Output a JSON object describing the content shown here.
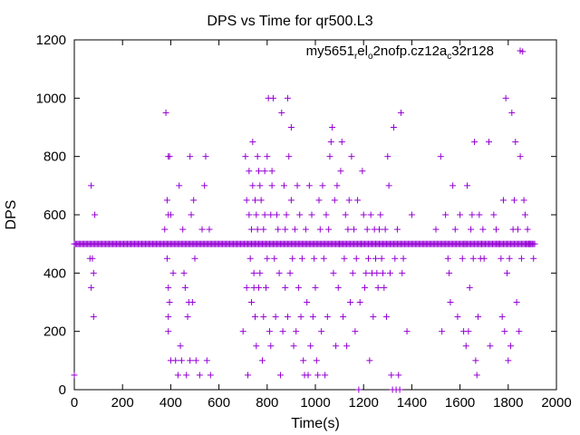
{
  "chart_data": {
    "type": "scatter",
    "title": "DPS vs Time for qr500.L3",
    "xlabel": "Time(s)",
    "ylabel": "DPS",
    "xlim": [
      0,
      2000
    ],
    "ylim": [
      0,
      1200
    ],
    "xticks": [
      "0",
      "200",
      "400",
      "600",
      "800",
      "1000",
      "1200",
      "1400",
      "1600",
      "1800",
      "2000"
    ],
    "yticks": [
      "0",
      "200",
      "400",
      "600",
      "800",
      "1000",
      "1200"
    ],
    "grid": false,
    "legend": {
      "position": "top-right",
      "parts": [
        {
          "t": "my5651",
          "sub": false
        },
        {
          "t": "r",
          "sub": true
        },
        {
          "t": "el",
          "sub": false
        },
        {
          "t": "o",
          "sub": true
        },
        {
          "t": "2nofp.cz12a",
          "sub": false
        },
        {
          "t": "c",
          "sub": true
        },
        {
          "t": "32r128",
          "sub": false
        }
      ]
    },
    "series": [
      {
        "name": "my5651_rel_o2nofp.cz12a_c32r128",
        "color": "#9400d3",
        "marker": "+",
        "baseline": {
          "y": 500,
          "x_start": 0,
          "x_end": 1910,
          "step": 5
        },
        "points": [
          [
            0,
            50
          ],
          [
            65,
            450
          ],
          [
            70,
            700
          ],
          [
            70,
            350
          ],
          [
            75,
            450
          ],
          [
            80,
            250
          ],
          [
            80,
            400
          ],
          [
            85,
            600
          ],
          [
            375,
            550
          ],
          [
            380,
            950
          ],
          [
            385,
            650
          ],
          [
            385,
            450
          ],
          [
            390,
            800
          ],
          [
            390,
            600
          ],
          [
            390,
            350
          ],
          [
            390,
            250
          ],
          [
            390,
            200
          ],
          [
            395,
            800
          ],
          [
            395,
            300
          ],
          [
            400,
            600
          ],
          [
            400,
            100
          ],
          [
            410,
            400
          ],
          [
            420,
            100
          ],
          [
            430,
            50
          ],
          [
            435,
            700
          ],
          [
            440,
            150
          ],
          [
            445,
            100
          ],
          [
            450,
            550
          ],
          [
            455,
            400
          ],
          [
            460,
            350
          ],
          [
            465,
            50
          ],
          [
            470,
            250
          ],
          [
            475,
            300
          ],
          [
            480,
            800
          ],
          [
            480,
            100
          ],
          [
            485,
            600
          ],
          [
            490,
            300
          ],
          [
            495,
            650
          ],
          [
            500,
            450
          ],
          [
            505,
            100
          ],
          [
            520,
            50
          ],
          [
            530,
            550
          ],
          [
            540,
            700
          ],
          [
            545,
            800
          ],
          [
            550,
            100
          ],
          [
            560,
            550
          ],
          [
            565,
            50
          ],
          [
            700,
            200
          ],
          [
            710,
            800
          ],
          [
            715,
            350
          ],
          [
            715,
            650
          ],
          [
            720,
            50
          ],
          [
            725,
            600
          ],
          [
            725,
            750
          ],
          [
            730,
            450
          ],
          [
            735,
            550
          ],
          [
            735,
            300
          ],
          [
            740,
            850
          ],
          [
            740,
            700
          ],
          [
            745,
            350
          ],
          [
            745,
            400
          ],
          [
            750,
            650
          ],
          [
            750,
            250
          ],
          [
            755,
            600
          ],
          [
            755,
            150
          ],
          [
            760,
            800
          ],
          [
            760,
            550
          ],
          [
            765,
            750
          ],
          [
            765,
            350
          ],
          [
            770,
            400
          ],
          [
            770,
            700
          ],
          [
            775,
            650
          ],
          [
            780,
            100
          ],
          [
            785,
            250
          ],
          [
            785,
            550
          ],
          [
            790,
            600
          ],
          [
            790,
            750
          ],
          [
            795,
            350
          ],
          [
            800,
            800
          ],
          [
            800,
            450
          ],
          [
            805,
            1000
          ],
          [
            810,
            200
          ],
          [
            815,
            600
          ],
          [
            815,
            150
          ],
          [
            820,
            750
          ],
          [
            820,
            700
          ],
          [
            825,
            1000
          ],
          [
            830,
            450
          ],
          [
            835,
            250
          ],
          [
            840,
            600
          ],
          [
            845,
            550
          ],
          [
            850,
            400
          ],
          [
            855,
            50
          ],
          [
            860,
            950
          ],
          [
            865,
            200
          ],
          [
            870,
            700
          ],
          [
            875,
            550
          ],
          [
            875,
            350
          ],
          [
            880,
            600
          ],
          [
            885,
            1000
          ],
          [
            885,
            250
          ],
          [
            890,
            800
          ],
          [
            895,
            400
          ],
          [
            900,
            900
          ],
          [
            900,
            650
          ],
          [
            905,
            450
          ],
          [
            910,
            150
          ],
          [
            915,
            550
          ],
          [
            920,
            200
          ],
          [
            925,
            700
          ],
          [
            930,
            350
          ],
          [
            935,
            600
          ],
          [
            940,
            250
          ],
          [
            945,
            450
          ],
          [
            950,
            100
          ],
          [
            955,
            50
          ],
          [
            960,
            550
          ],
          [
            965,
            300
          ],
          [
            970,
            50
          ],
          [
            975,
            700
          ],
          [
            980,
            150
          ],
          [
            985,
            600
          ],
          [
            990,
            250
          ],
          [
            995,
            450
          ],
          [
            1000,
            350
          ],
          [
            1005,
            100
          ],
          [
            1010,
            50
          ],
          [
            1015,
            650
          ],
          [
            1020,
            550
          ],
          [
            1025,
            200
          ],
          [
            1030,
            700
          ],
          [
            1035,
            450
          ],
          [
            1040,
            50
          ],
          [
            1045,
            600
          ],
          [
            1050,
            250
          ],
          [
            1055,
            550
          ],
          [
            1060,
            800
          ],
          [
            1065,
            850
          ],
          [
            1070,
            900
          ],
          [
            1075,
            400
          ],
          [
            1080,
            650
          ],
          [
            1085,
            150
          ],
          [
            1090,
            700
          ],
          [
            1095,
            350
          ],
          [
            1100,
            500
          ],
          [
            1105,
            750
          ],
          [
            1110,
            850
          ],
          [
            1115,
            250
          ],
          [
            1120,
            450
          ],
          [
            1125,
            600
          ],
          [
            1130,
            150
          ],
          [
            1135,
            550
          ],
          [
            1140,
            650
          ],
          [
            1145,
            300
          ],
          [
            1150,
            800
          ],
          [
            1155,
            400
          ],
          [
            1160,
            550
          ],
          [
            1165,
            200
          ],
          [
            1170,
            450
          ],
          [
            1175,
            650
          ],
          [
            1180,
            0
          ],
          [
            1185,
            300
          ],
          [
            1190,
            500
          ],
          [
            1195,
            750
          ],
          [
            1200,
            600
          ],
          [
            1205,
            350
          ],
          [
            1210,
            400
          ],
          [
            1215,
            550
          ],
          [
            1220,
            450
          ],
          [
            1225,
            100
          ],
          [
            1230,
            600
          ],
          [
            1235,
            400
          ],
          [
            1240,
            250
          ],
          [
            1245,
            550
          ],
          [
            1250,
            450
          ],
          [
            1255,
            400
          ],
          [
            1260,
            350
          ],
          [
            1265,
            550
          ],
          [
            1270,
            600
          ],
          [
            1275,
            450
          ],
          [
            1280,
            400
          ],
          [
            1285,
            350
          ],
          [
            1290,
            550
          ],
          [
            1295,
            250
          ],
          [
            1300,
            800
          ],
          [
            1305,
            700
          ],
          [
            1310,
            400
          ],
          [
            1315,
            50
          ],
          [
            1320,
            0
          ],
          [
            1325,
            900
          ],
          [
            1330,
            450
          ],
          [
            1335,
            0
          ],
          [
            1340,
            550
          ],
          [
            1345,
            50
          ],
          [
            1350,
            0
          ],
          [
            1355,
            950
          ],
          [
            1360,
            400
          ],
          [
            1365,
            450
          ],
          [
            1380,
            200
          ],
          [
            1400,
            600
          ],
          [
            1500,
            550
          ],
          [
            1520,
            800
          ],
          [
            1525,
            200
          ],
          [
            1540,
            600
          ],
          [
            1550,
            450
          ],
          [
            1555,
            400
          ],
          [
            1560,
            300
          ],
          [
            1570,
            700
          ],
          [
            1580,
            550
          ],
          [
            1590,
            250
          ],
          [
            1600,
            600
          ],
          [
            1610,
            450
          ],
          [
            1615,
            200
          ],
          [
            1620,
            500
          ],
          [
            1625,
            150
          ],
          [
            1630,
            700
          ],
          [
            1635,
            200
          ],
          [
            1640,
            350
          ],
          [
            1645,
            550
          ],
          [
            1650,
            600
          ],
          [
            1655,
            450
          ],
          [
            1660,
            850
          ],
          [
            1665,
            100
          ],
          [
            1670,
            50
          ],
          [
            1675,
            250
          ],
          [
            1680,
            600
          ],
          [
            1685,
            450
          ],
          [
            1690,
            500
          ],
          [
            1695,
            550
          ],
          [
            1700,
            450
          ],
          [
            1720,
            850
          ],
          [
            1725,
            150
          ],
          [
            1740,
            600
          ],
          [
            1750,
            550
          ],
          [
            1760,
            500
          ],
          [
            1770,
            450
          ],
          [
            1775,
            250
          ],
          [
            1780,
            650
          ],
          [
            1785,
            200
          ],
          [
            1790,
            1000
          ],
          [
            1795,
            400
          ],
          [
            1800,
            100
          ],
          [
            1805,
            450
          ],
          [
            1810,
            150
          ],
          [
            1815,
            950
          ],
          [
            1820,
            550
          ],
          [
            1825,
            650
          ],
          [
            1830,
            850
          ],
          [
            1835,
            300
          ],
          [
            1840,
            550
          ],
          [
            1845,
            200
          ],
          [
            1850,
            800
          ],
          [
            1855,
            450
          ],
          [
            1860,
            1160
          ],
          [
            1865,
            650
          ],
          [
            1870,
            600
          ],
          [
            1875,
            500
          ],
          [
            1880,
            550
          ],
          [
            1885,
            500
          ],
          [
            1890,
            500
          ],
          [
            1895,
            500
          ],
          [
            1905,
            450
          ]
        ]
      }
    ]
  }
}
